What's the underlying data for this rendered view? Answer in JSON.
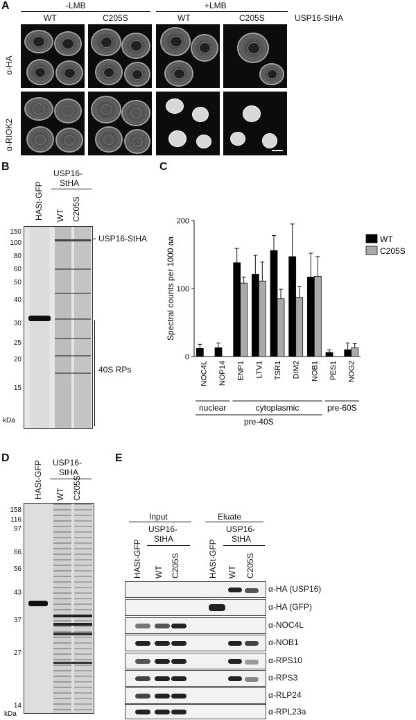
{
  "panelA": {
    "label": "A",
    "group_minus": "-LMB",
    "group_plus": "+LMB",
    "col_wt1": "WT",
    "col_c1": "C205S",
    "col_wt2": "WT",
    "col_c2": "C205S",
    "construct": "USP16-StHA",
    "row_ha": "α-HA",
    "row_riok2": "α-RIOK2"
  },
  "panelB": {
    "label": "B",
    "lane_hast": "HASt-GFP",
    "construct_line1": "USP16-",
    "construct_line2": "StHA",
    "lane_wt": "WT",
    "lane_c": "C205S",
    "markers": [
      "150",
      "100",
      "80",
      "60",
      "50",
      "40",
      "30",
      "25",
      "20",
      "15"
    ],
    "unit": "kDa",
    "annot_usp": "USP16-StHA",
    "annot_rps": "40S RPs"
  },
  "panelC": {
    "label": "C",
    "chart_data": {
      "type": "bar",
      "ylabel": "Spectral counts per 1000 aa",
      "ylim": [
        0,
        200
      ],
      "yticks": [
        "0",
        "100",
        "200"
      ],
      "categories": [
        "NOC4L",
        "NOP14",
        "ENP1",
        "LTV1",
        "TSR1",
        "DIM2",
        "NOB1",
        "PES1",
        "NOG2"
      ],
      "series": [
        {
          "name": "WT",
          "color": "#000000",
          "values": [
            12,
            13,
            138,
            121,
            156,
            147,
            117,
            6,
            10
          ],
          "errors": [
            6,
            7,
            21,
            28,
            22,
            48,
            35,
            4,
            10
          ]
        },
        {
          "name": "C205S",
          "color": "#aaaaaa",
          "values": [
            0,
            0,
            108,
            111,
            85,
            87,
            118,
            0,
            13
          ],
          "errors": [
            0,
            0,
            9,
            28,
            14,
            16,
            29,
            0,
            6
          ]
        }
      ],
      "groups": {
        "nuclear": "nuclear",
        "cytoplasmic": "cytoplasmic",
        "pre40": "pre-40S",
        "pre60": "pre-60S"
      }
    }
  },
  "panelD": {
    "label": "D",
    "lane_hast": "HASt-GFP",
    "construct_line1": "USP16-",
    "construct_line2": "StHA",
    "lane_wt": "WT",
    "lane_c": "C205S",
    "markers": [
      "158",
      "116",
      "97",
      "66",
      "56",
      "43",
      "37",
      "27",
      "14"
    ],
    "unit": "kDa"
  },
  "panelE": {
    "label": "E",
    "input": "Input",
    "eluate": "Eluate",
    "lane_hast1": "HASt-GFP",
    "lane_wt1": "WT",
    "lane_c1": "C205S",
    "lane_hast2": "HASt-GFP",
    "lane_wt2": "WT",
    "lane_c2": "C205S",
    "construct_a1": "USP16-",
    "construct_b1": "StHA",
    "construct_a2": "USP16-",
    "construct_b2": "StHA",
    "antibodies": [
      "α-HA (USP16)",
      "α-HA (GFP)",
      "α-NOC4L",
      "α-NOB1",
      "α-RPS10",
      "α-RPS3",
      "α-RLP24",
      "α-RPL23a"
    ]
  }
}
